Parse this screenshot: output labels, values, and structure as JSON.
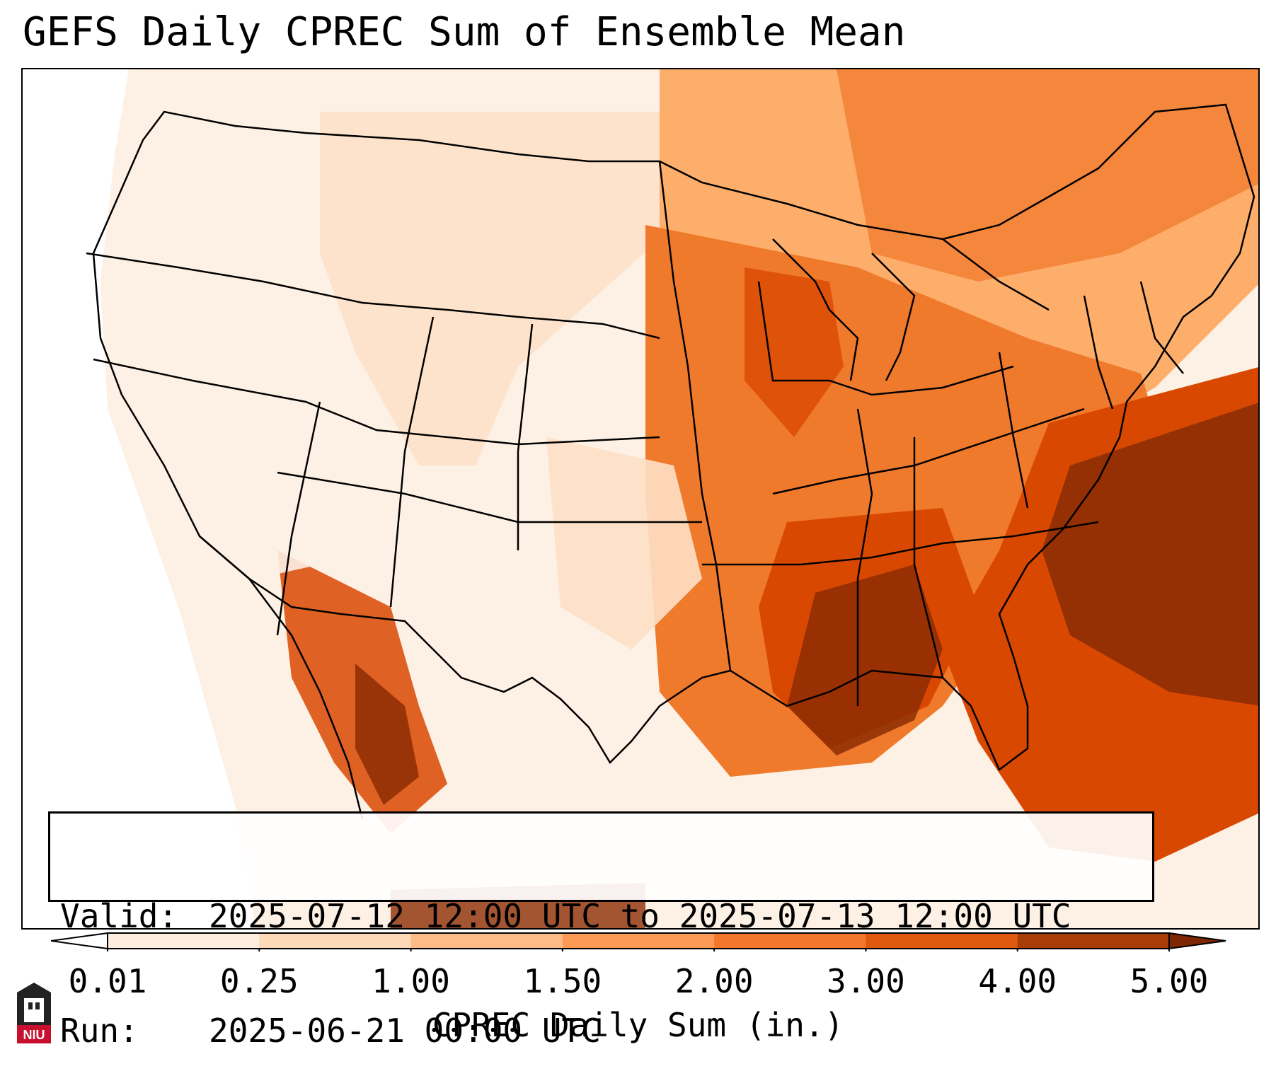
{
  "title": "GEFS Daily CPREC Sum of Ensemble Mean",
  "info": {
    "valid_key": "Valid:",
    "valid_value": "2025-07-12 12:00 UTC to 2025-07-13 12:00 UTC",
    "run_key": "Run:",
    "run_value": "2025-06-21 00:00 UTC"
  },
  "colorbar": {
    "label": "CPREC Daily Sum (in.)",
    "ticks": [
      "0.01",
      "0.25",
      "1.00",
      "1.50",
      "2.00",
      "3.00",
      "4.00",
      "5.00"
    ],
    "colors": [
      "#fdeee0",
      "#fdd9b8",
      "#fdbb87",
      "#fd9a55",
      "#f4782b",
      "#df5a0e",
      "#a83d05"
    ],
    "under_color": "#ffffff",
    "over_color": "#7f2704"
  },
  "logo": {
    "text": "NIU",
    "colors": {
      "shield": "#222222",
      "band": "#c8102e"
    },
    "icon": "niu-tower-icon"
  },
  "map": {
    "region": "CONUS",
    "colors": {
      "background": "#fdf0e4",
      "light": "#fde0c5",
      "medium": "#fdae6b",
      "heavy": "#f07a2c",
      "very_heavy": "#d94801",
      "extreme": "#8c2d04",
      "border": "#000000"
    }
  }
}
